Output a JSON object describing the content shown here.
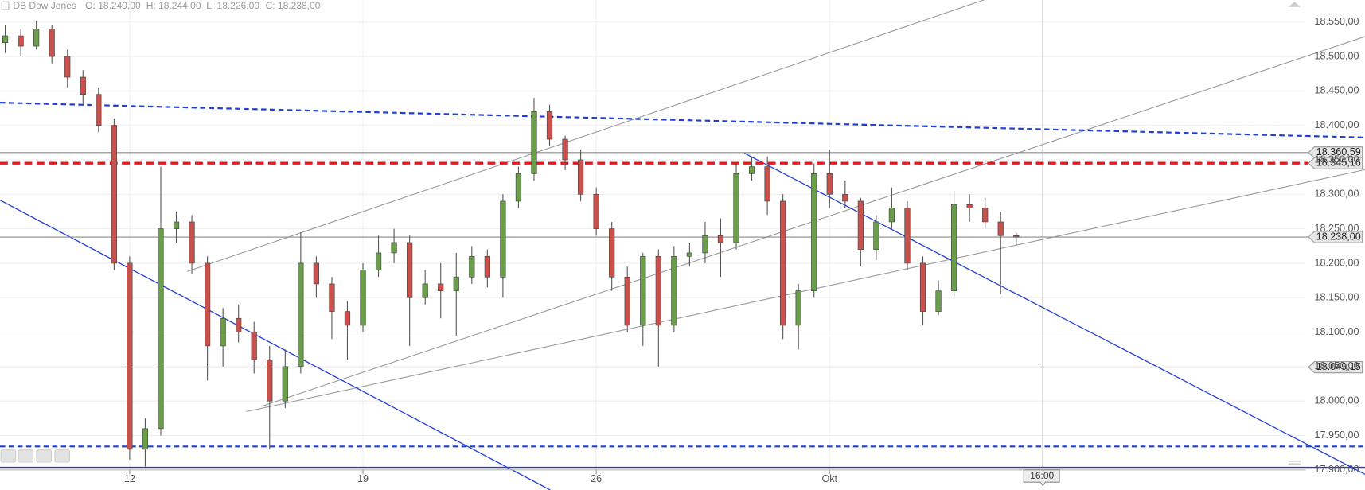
{
  "chart_data": {
    "type": "candlestick",
    "title": "DB Dow Jones",
    "info": [
      "O: 18.240,00",
      "H: 18.244,00",
      "L: 18.226,00",
      "C: 18.238,00"
    ],
    "crosshair_label": "16:00",
    "categories": [
      null,
      null,
      null,
      null,
      null,
      null,
      null,
      null,
      "12",
      null,
      null,
      null,
      null,
      null,
      null,
      null,
      null,
      null,
      null,
      null,
      null,
      null,
      null,
      "19",
      null,
      null,
      null,
      null,
      null,
      null,
      null,
      null,
      null,
      null,
      null,
      null,
      null,
      null,
      "26",
      null,
      null,
      null,
      null,
      null,
      null,
      null,
      null,
      null,
      null,
      null,
      null,
      null,
      null,
      "Okt",
      null,
      null,
      null,
      null,
      null,
      null,
      null,
      null,
      null,
      null,
      null,
      null
    ],
    "open": [
      18520,
      18530,
      18515,
      18540,
      18500,
      18470,
      18445,
      18400,
      18200,
      17930,
      17960,
      18250,
      18260,
      18200,
      18080,
      18120,
      18100,
      18060,
      18000,
      18050,
      18200,
      18170,
      18130,
      18110,
      18190,
      18215,
      18230,
      18150,
      18170,
      18160,
      18180,
      18210,
      18180,
      18290,
      18330,
      18420,
      18380,
      18350,
      18300,
      18250,
      18180,
      18110,
      18210,
      18110,
      18210,
      18215,
      18240,
      18230,
      18330,
      18340,
      18290,
      18110,
      18160,
      18330,
      18300,
      18290,
      18220,
      18260,
      18280,
      18200,
      18130,
      18160,
      18285,
      18280,
      18260,
      18240
    ],
    "high": [
      18545,
      18540,
      18552,
      18545,
      18510,
      18480,
      18455,
      18410,
      18210,
      17975,
      18340,
      18275,
      18270,
      18210,
      18135,
      18140,
      18115,
      18080,
      18075,
      18245,
      18210,
      18180,
      18145,
      18200,
      18240,
      18250,
      18240,
      18190,
      18200,
      18215,
      18225,
      18220,
      18300,
      18340,
      18440,
      18430,
      18385,
      18365,
      18310,
      18260,
      18195,
      18215,
      18220,
      18225,
      18230,
      18260,
      18265,
      18345,
      18355,
      18355,
      18300,
      18170,
      18345,
      18365,
      18320,
      18295,
      18270,
      18310,
      18290,
      18210,
      18175,
      18305,
      18300,
      18295,
      18275,
      18244
    ],
    "low": [
      18505,
      18500,
      18510,
      18490,
      18455,
      18430,
      18390,
      18190,
      17915,
      17905,
      17950,
      18230,
      18185,
      18030,
      18050,
      18085,
      18040,
      17930,
      17990,
      18040,
      18150,
      18090,
      18060,
      18100,
      18180,
      18200,
      18080,
      18140,
      18120,
      18095,
      18170,
      18165,
      18150,
      18280,
      18320,
      18370,
      18335,
      18290,
      18240,
      18160,
      18100,
      18080,
      18050,
      18100,
      18195,
      18200,
      18180,
      18220,
      18320,
      18270,
      18090,
      18075,
      18150,
      18280,
      18280,
      18195,
      18205,
      18250,
      18190,
      18110,
      18125,
      18150,
      18260,
      18250,
      18155,
      18226
    ],
    "close": [
      18530,
      18515,
      18540,
      18500,
      18470,
      18445,
      18400,
      18200,
      17930,
      17960,
      18250,
      18260,
      18200,
      18080,
      18120,
      18100,
      18060,
      18000,
      18050,
      18200,
      18170,
      18130,
      18110,
      18190,
      18215,
      18230,
      18150,
      18170,
      18160,
      18180,
      18210,
      18180,
      18290,
      18330,
      18420,
      18380,
      18350,
      18300,
      18250,
      18180,
      18110,
      18210,
      18110,
      18210,
      18215,
      18240,
      18230,
      18330,
      18340,
      18290,
      18110,
      18160,
      18330,
      18300,
      18290,
      18220,
      18260,
      18280,
      18200,
      18130,
      18160,
      18285,
      18280,
      18260,
      18240,
      18238
    ],
    "up_color": "#6b9e4a",
    "down_color": "#c9504b",
    "ylim": [
      17900,
      18582
    ],
    "yticks": [
      {
        "value": 17900,
        "label": "17.900,00"
      },
      {
        "value": 17950,
        "label": "17.950,00"
      },
      {
        "value": 18000,
        "label": "18.000,00"
      },
      {
        "value": 18050,
        "label": "18.050,00"
      },
      {
        "value": 18100,
        "label": "18.100,00"
      },
      {
        "value": 18150,
        "label": "18.150,00"
      },
      {
        "value": 18200,
        "label": "18.200,00"
      },
      {
        "value": 18250,
        "label": "18.250,00"
      },
      {
        "value": 18300,
        "label": "18.300,00"
      },
      {
        "value": 18350,
        "label": "18.350,00"
      },
      {
        "value": 18400,
        "label": "18.400,00"
      },
      {
        "value": 18450,
        "label": "18.450,00"
      },
      {
        "value": 18500,
        "label": "18.500,00"
      },
      {
        "value": 18550,
        "label": "18.550,00"
      }
    ],
    "grid": true,
    "levels": [
      {
        "value": 18360.59,
        "label": "18.360,59",
        "color": "#8a8a8a",
        "dashed": false
      },
      {
        "value": 18345.16,
        "label": "18.345,16",
        "color": "#e01b1b",
        "dashed": true
      },
      {
        "value": 18238,
        "label": "18.238,00",
        "color": "#8a8a8a",
        "dashed": false
      },
      {
        "value": 18049.15,
        "label": "18.049,15",
        "color": "#8a8a8a",
        "dashed": false
      }
    ]
  }
}
